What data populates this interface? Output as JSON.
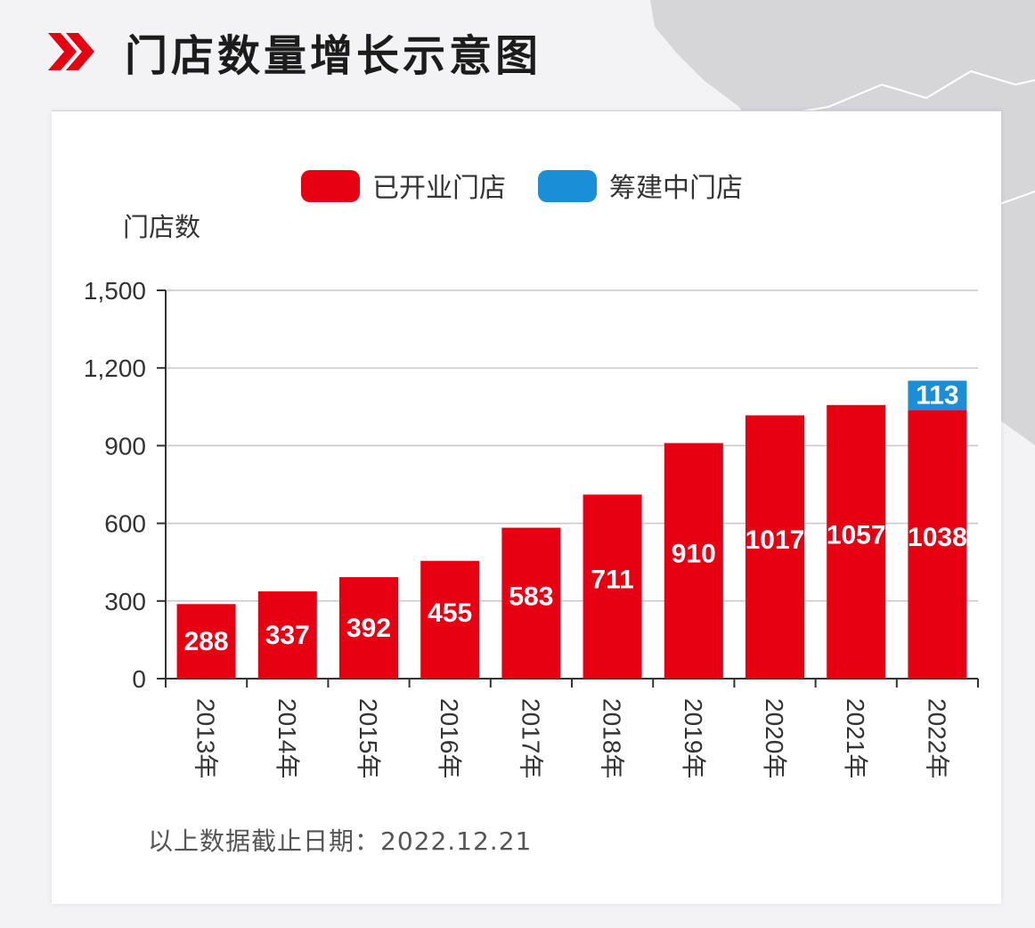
{
  "header": {
    "title": "门店数量增长示意图",
    "chevron_icon": "double-chevron-right-icon",
    "accent_color": "#e60012"
  },
  "chart_data": {
    "type": "bar",
    "stacked": true,
    "ylabel": "门店数",
    "ylim": [
      0,
      1500
    ],
    "yticks": [
      "0",
      "300",
      "600",
      "900",
      "1,200",
      "1,500"
    ],
    "ytick_values": [
      0,
      300,
      600,
      900,
      1200,
      1500
    ],
    "grid": true,
    "legend_position": "top-center",
    "categories": [
      "2013年",
      "2014年",
      "2015年",
      "2016年",
      "2017年",
      "2018年",
      "2019年",
      "2020年",
      "2021年",
      "2022年"
    ],
    "series": [
      {
        "name": "已开业门店",
        "color": "#e60012",
        "values": [
          288,
          337,
          392,
          455,
          583,
          711,
          910,
          1017,
          1057,
          1038
        ],
        "labels": [
          "288",
          "337",
          "392",
          "455",
          "583",
          "711",
          "910",
          "1017",
          "1057",
          "1038"
        ]
      },
      {
        "name": "筹建中门店",
        "color": "#1a8fd8",
        "values": [
          0,
          0,
          0,
          0,
          0,
          0,
          0,
          0,
          0,
          113
        ],
        "labels": [
          "",
          "",
          "",
          "",
          "",
          "",
          "",
          "",
          "",
          "113"
        ]
      }
    ]
  },
  "footnote": "以上数据截止日期：2022.12.21"
}
